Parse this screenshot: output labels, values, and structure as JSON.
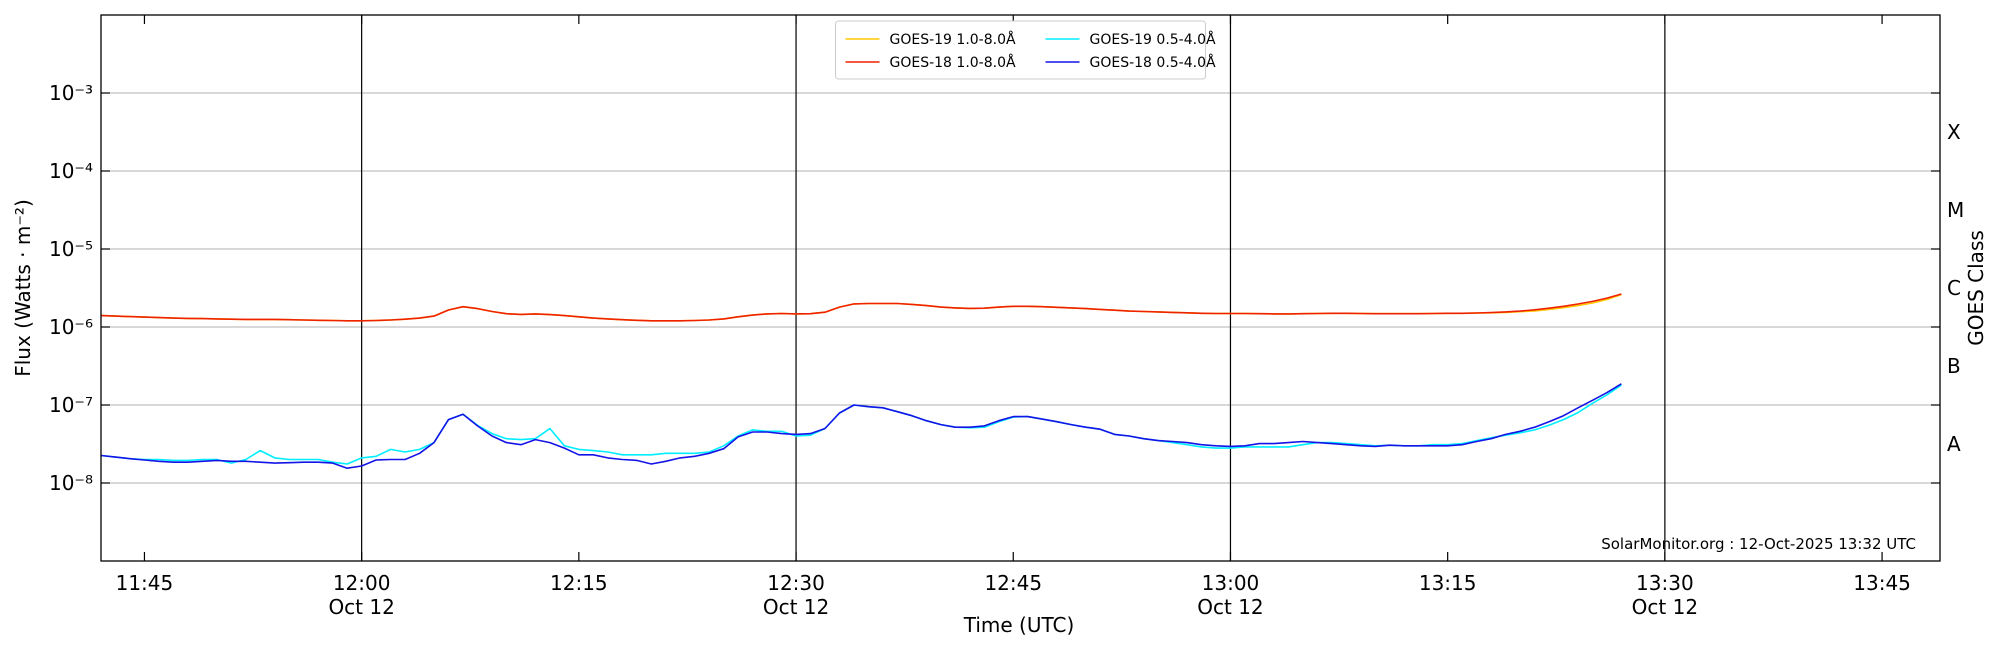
{
  "chart_data": {
    "type": "line",
    "x_label": "Time (UTC)",
    "y_label": "Flux (Watts · m⁻²)",
    "y2_label": "GOES Class",
    "annotation": "SolarMonitor.org : 12-Oct-2025 13:32 UTC",
    "log_y": true,
    "grid": true,
    "legend": "upper center",
    "xlim": [
      "11:42",
      "13:49"
    ],
    "xticks": [
      "11:45",
      "12:00",
      "12:15",
      "12:30",
      "12:45",
      "13:00",
      "13:15",
      "13:30",
      "13:45"
    ],
    "xtick_sublabels": [
      null,
      "Oct 12",
      null,
      "Oct 12",
      null,
      "Oct 12",
      null,
      "Oct 12",
      null
    ],
    "vlines": [
      "12:00",
      "12:30",
      "13:00",
      "13:30"
    ],
    "ylim": [
      1e-09,
      0.01
    ],
    "yticks": [
      {
        "value": 1e-08,
        "label": "10⁻⁸"
      },
      {
        "value": 1e-07,
        "label": "10⁻⁷"
      },
      {
        "value": 1e-06,
        "label": "10⁻⁶"
      },
      {
        "value": 1e-05,
        "label": "10⁻⁵"
      },
      {
        "value": 0.0001,
        "label": "10⁻⁴"
      },
      {
        "value": 0.001,
        "label": "10⁻³"
      }
    ],
    "goes_classes": [
      {
        "label": "A",
        "flux": 1e-08
      },
      {
        "label": "B",
        "flux": 1e-07
      },
      {
        "label": "C",
        "flux": 1e-06
      },
      {
        "label": "M",
        "flux": 1e-05
      },
      {
        "label": "X",
        "flux": 0.0001
      }
    ],
    "x": [
      "11:42",
      "11:43",
      "11:44",
      "11:45",
      "11:46",
      "11:47",
      "11:48",
      "11:49",
      "11:50",
      "11:51",
      "11:52",
      "11:53",
      "11:54",
      "11:55",
      "11:56",
      "11:57",
      "11:58",
      "11:59",
      "12:00",
      "12:01",
      "12:02",
      "12:03",
      "12:04",
      "12:05",
      "12:06",
      "12:07",
      "12:08",
      "12:09",
      "12:10",
      "12:11",
      "12:12",
      "12:13",
      "12:14",
      "12:15",
      "12:16",
      "12:17",
      "12:18",
      "12:19",
      "12:20",
      "12:21",
      "12:22",
      "12:23",
      "12:24",
      "12:25",
      "12:26",
      "12:27",
      "12:28",
      "12:29",
      "12:30",
      "12:31",
      "12:32",
      "12:33",
      "12:34",
      "12:35",
      "12:36",
      "12:37",
      "12:38",
      "12:39",
      "12:40",
      "12:41",
      "12:42",
      "12:43",
      "12:44",
      "12:45",
      "12:46",
      "12:47",
      "12:48",
      "12:49",
      "12:50",
      "12:51",
      "12:52",
      "12:53",
      "12:54",
      "12:55",
      "12:56",
      "12:57",
      "12:58",
      "12:59",
      "13:00",
      "13:01",
      "13:02",
      "13:03",
      "13:04",
      "13:05",
      "13:06",
      "13:07",
      "13:08",
      "13:09",
      "13:10",
      "13:11",
      "13:12",
      "13:13",
      "13:14",
      "13:15",
      "13:16",
      "13:17",
      "13:18",
      "13:19",
      "13:20",
      "13:21",
      "13:22",
      "13:23",
      "13:24",
      "13:25",
      "13:26",
      "13:27"
    ],
    "series": [
      {
        "name": "GOES-19 1.0-8.0Å",
        "color": "#ffc800",
        "values": [
          1.4e-06,
          1.38e-06,
          1.36e-06,
          1.34e-06,
          1.32e-06,
          1.3e-06,
          1.29e-06,
          1.28e-06,
          1.27e-06,
          1.26e-06,
          1.25e-06,
          1.25e-06,
          1.25e-06,
          1.24e-06,
          1.23e-06,
          1.22e-06,
          1.21e-06,
          1.2e-06,
          1.2e-06,
          1.21e-06,
          1.23e-06,
          1.26e-06,
          1.3e-06,
          1.38e-06,
          1.65e-06,
          1.82e-06,
          1.72e-06,
          1.58e-06,
          1.48e-06,
          1.45e-06,
          1.47e-06,
          1.44e-06,
          1.4e-06,
          1.35e-06,
          1.3e-06,
          1.27e-06,
          1.24e-06,
          1.22e-06,
          1.2e-06,
          1.2e-06,
          1.2e-06,
          1.21e-06,
          1.23e-06,
          1.27e-06,
          1.35e-06,
          1.42e-06,
          1.47e-06,
          1.49e-06,
          1.47e-06,
          1.48e-06,
          1.55e-06,
          1.8e-06,
          1.98e-06,
          2e-06,
          2e-06,
          2e-06,
          1.95e-06,
          1.88e-06,
          1.8e-06,
          1.76e-06,
          1.73e-06,
          1.74e-06,
          1.8e-06,
          1.84e-06,
          1.84e-06,
          1.82e-06,
          1.79e-06,
          1.76e-06,
          1.72e-06,
          1.68e-06,
          1.64e-06,
          1.6e-06,
          1.58e-06,
          1.56e-06,
          1.54e-06,
          1.52e-06,
          1.5e-06,
          1.49e-06,
          1.49e-06,
          1.49e-06,
          1.48e-06,
          1.47e-06,
          1.47e-06,
          1.48e-06,
          1.49e-06,
          1.5e-06,
          1.5e-06,
          1.49e-06,
          1.48e-06,
          1.48e-06,
          1.48e-06,
          1.48e-06,
          1.49e-06,
          1.5e-06,
          1.5e-06,
          1.51e-06,
          1.52e-06,
          1.54e-06,
          1.57e-06,
          1.61e-06,
          1.68e-06,
          1.77e-06,
          1.88e-06,
          2.03e-06,
          2.25e-06,
          2.6e-06
        ]
      },
      {
        "name": "GOES-18 1.0-8.0Å",
        "color": "#ee2200",
        "values": [
          1.4e-06,
          1.38e-06,
          1.36e-06,
          1.34e-06,
          1.32e-06,
          1.3e-06,
          1.29e-06,
          1.28e-06,
          1.27e-06,
          1.26e-06,
          1.25e-06,
          1.25e-06,
          1.25e-06,
          1.24e-06,
          1.23e-06,
          1.22e-06,
          1.21e-06,
          1.2e-06,
          1.2e-06,
          1.21e-06,
          1.23e-06,
          1.26e-06,
          1.3e-06,
          1.38e-06,
          1.65e-06,
          1.82e-06,
          1.72e-06,
          1.58e-06,
          1.48e-06,
          1.45e-06,
          1.47e-06,
          1.44e-06,
          1.4e-06,
          1.35e-06,
          1.3e-06,
          1.27e-06,
          1.24e-06,
          1.22e-06,
          1.2e-06,
          1.2e-06,
          1.2e-06,
          1.21e-06,
          1.23e-06,
          1.27e-06,
          1.35e-06,
          1.42e-06,
          1.47e-06,
          1.49e-06,
          1.47e-06,
          1.48e-06,
          1.55e-06,
          1.8e-06,
          1.98e-06,
          2e-06,
          2e-06,
          2e-06,
          1.95e-06,
          1.88e-06,
          1.8e-06,
          1.76e-06,
          1.73e-06,
          1.74e-06,
          1.8e-06,
          1.84e-06,
          1.84e-06,
          1.82e-06,
          1.79e-06,
          1.76e-06,
          1.72e-06,
          1.68e-06,
          1.64e-06,
          1.6e-06,
          1.58e-06,
          1.56e-06,
          1.54e-06,
          1.52e-06,
          1.5e-06,
          1.49e-06,
          1.49e-06,
          1.49e-06,
          1.48e-06,
          1.47e-06,
          1.47e-06,
          1.48e-06,
          1.49e-06,
          1.5e-06,
          1.5e-06,
          1.49e-06,
          1.48e-06,
          1.48e-06,
          1.48e-06,
          1.48e-06,
          1.49e-06,
          1.5e-06,
          1.5e-06,
          1.51e-06,
          1.53e-06,
          1.56e-06,
          1.6e-06,
          1.66e-06,
          1.74e-06,
          1.84e-06,
          1.97e-06,
          2.13e-06,
          2.35e-06,
          2.65e-06
        ]
      },
      {
        "name": "GOES-19 0.5-4.0Å",
        "color": "#00eeff",
        "values": [
          2.25e-08,
          2.15e-08,
          2.05e-08,
          2e-08,
          2e-08,
          1.95e-08,
          1.95e-08,
          2e-08,
          2e-08,
          1.8e-08,
          2e-08,
          2.6e-08,
          2.1e-08,
          2e-08,
          2e-08,
          2e-08,
          1.85e-08,
          1.75e-08,
          2.1e-08,
          2.2e-08,
          2.7e-08,
          2.5e-08,
          2.7e-08,
          3.3e-08,
          6.5e-08,
          7.6e-08,
          5.5e-08,
          4.3e-08,
          3.7e-08,
          3.6e-08,
          3.7e-08,
          5e-08,
          3e-08,
          2.7e-08,
          2.6e-08,
          2.5e-08,
          2.3e-08,
          2.3e-08,
          2.3e-08,
          2.4e-08,
          2.4e-08,
          2.4e-08,
          2.5e-08,
          3e-08,
          4e-08,
          4.8e-08,
          4.6e-08,
          4.6e-08,
          4e-08,
          4.1e-08,
          5e-08,
          7.9e-08,
          1e-07,
          9.5e-08,
          9.2e-08,
          8.2e-08,
          7.3e-08,
          6.3e-08,
          5.6e-08,
          5.2e-08,
          5.1e-08,
          5.2e-08,
          6.1e-08,
          7e-08,
          7.1e-08,
          6.6e-08,
          6.1e-08,
          5.6e-08,
          5.2e-08,
          4.9e-08,
          4.2e-08,
          4e-08,
          3.7e-08,
          3.5e-08,
          3.3e-08,
          3.1e-08,
          2.9e-08,
          2.8e-08,
          2.8e-08,
          2.9e-08,
          2.9e-08,
          2.9e-08,
          2.9e-08,
          3.1e-08,
          3.3e-08,
          3.3e-08,
          3.2e-08,
          3.1e-08,
          3e-08,
          3.05e-08,
          3e-08,
          3e-08,
          3.1e-08,
          3.1e-08,
          3.2e-08,
          3.5e-08,
          3.8e-08,
          4.1e-08,
          4.4e-08,
          4.8e-08,
          5.5e-08,
          6.5e-08,
          8e-08,
          1.05e-07,
          1.35e-07,
          1.8e-07
        ]
      },
      {
        "name": "GOES-18 0.5-4.0Å",
        "color": "#1414e6",
        "values": [
          2.25e-08,
          2.15e-08,
          2.05e-08,
          1.97e-08,
          1.9e-08,
          1.85e-08,
          1.85e-08,
          1.9e-08,
          1.95e-08,
          1.9e-08,
          1.9e-08,
          1.85e-08,
          1.8e-08,
          1.82e-08,
          1.85e-08,
          1.85e-08,
          1.8e-08,
          1.55e-08,
          1.65e-08,
          1.97e-08,
          2e-08,
          2e-08,
          2.4e-08,
          3.3e-08,
          6.5e-08,
          7.6e-08,
          5.4e-08,
          4e-08,
          3.3e-08,
          3.1e-08,
          3.6e-08,
          3.3e-08,
          2.8e-08,
          2.3e-08,
          2.3e-08,
          2.1e-08,
          2e-08,
          1.95e-08,
          1.75e-08,
          1.9e-08,
          2.1e-08,
          2.2e-08,
          2.4e-08,
          2.75e-08,
          3.9e-08,
          4.5e-08,
          4.5e-08,
          4.3e-08,
          4.2e-08,
          4.3e-08,
          5e-08,
          7.9e-08,
          1e-07,
          9.5e-08,
          9.2e-08,
          8.2e-08,
          7.3e-08,
          6.3e-08,
          5.6e-08,
          5.2e-08,
          5.2e-08,
          5.4e-08,
          6.3e-08,
          7.1e-08,
          7.1e-08,
          6.6e-08,
          6.1e-08,
          5.6e-08,
          5.2e-08,
          4.9e-08,
          4.2e-08,
          4e-08,
          3.7e-08,
          3.5e-08,
          3.4e-08,
          3.3e-08,
          3.1e-08,
          3e-08,
          2.95e-08,
          3e-08,
          3.2e-08,
          3.2e-08,
          3.3e-08,
          3.4e-08,
          3.3e-08,
          3.2e-08,
          3.1e-08,
          3e-08,
          2.95e-08,
          3.05e-08,
          3e-08,
          3e-08,
          3e-08,
          3e-08,
          3.1e-08,
          3.4e-08,
          3.7e-08,
          4.2e-08,
          4.6e-08,
          5.2e-08,
          6.1e-08,
          7.3e-08,
          9.2e-08,
          1.15e-07,
          1.44e-07,
          1.87e-07
        ]
      }
    ]
  }
}
